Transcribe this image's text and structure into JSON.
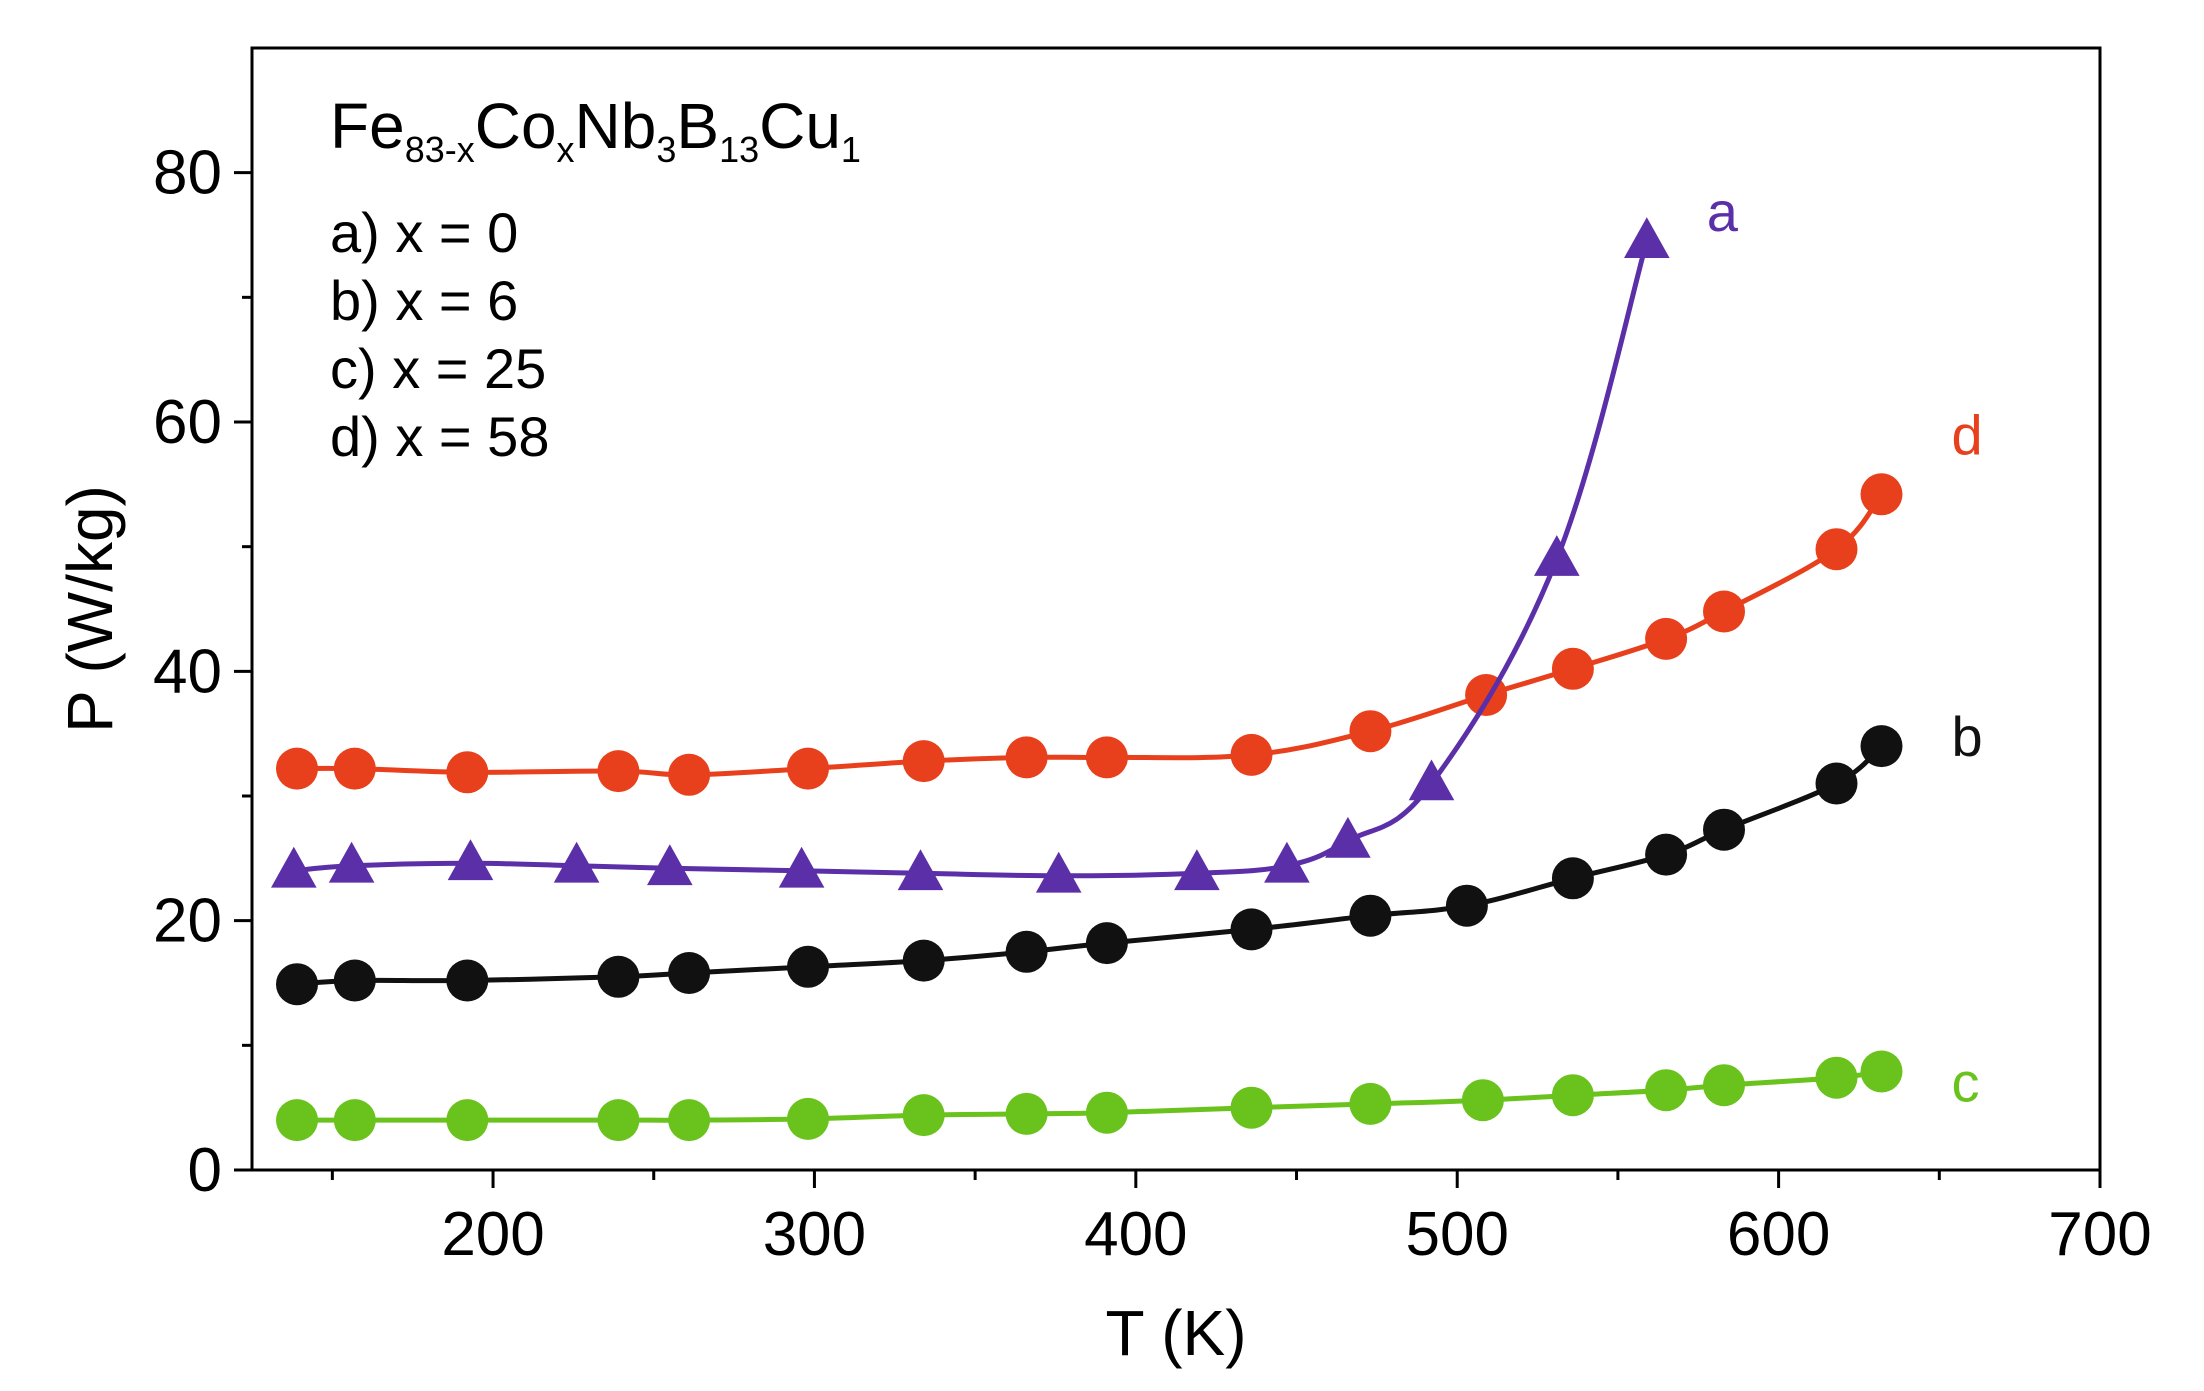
{
  "chart_data": {
    "type": "line",
    "xlabel": "T (K)",
    "ylabel": "P (W/kg)",
    "xlim": [
      125,
      700
    ],
    "ylim": [
      0,
      90
    ],
    "x_ticks": [
      200,
      300,
      400,
      500,
      600,
      700
    ],
    "y_ticks": [
      0,
      20,
      40,
      60,
      80
    ],
    "x_tick_labels": [
      "200",
      "300",
      "400",
      "500",
      "600",
      "700"
    ],
    "y_tick_labels": [
      "0",
      "20",
      "40",
      "60",
      "80"
    ],
    "formula": {
      "parts": [
        {
          "text": "Fe",
          "sub": false
        },
        {
          "text": "83-x",
          "sub": true
        },
        {
          "text": "Co",
          "sub": false
        },
        {
          "text": "x",
          "sub": true
        },
        {
          "text": "Nb",
          "sub": false
        },
        {
          "text": "3",
          "sub": true
        },
        {
          "text": "B",
          "sub": false
        },
        {
          "text": "13",
          "sub": true
        },
        {
          "text": "Cu",
          "sub": false
        },
        {
          "text": "1",
          "sub": true
        }
      ]
    },
    "legend_lines": [
      "a) x = 0",
      "b) x = 6",
      "c) x = 25",
      "d) x = 58"
    ],
    "series": [
      {
        "name": "a",
        "label": "a",
        "marker": "triangle",
        "color": "#5b2fa8",
        "x": [
          138,
          156,
          193,
          226,
          255,
          296,
          333,
          376,
          419,
          447,
          466,
          492,
          531,
          559
        ],
        "y": [
          24.0,
          24.4,
          24.6,
          24.4,
          24.2,
          24.0,
          23.8,
          23.6,
          23.8,
          24.4,
          26.4,
          31.0,
          49.0,
          74.5
        ]
      },
      {
        "name": "b",
        "label": "b",
        "marker": "circle",
        "color": "#111111",
        "x": [
          139,
          157,
          192,
          239,
          261,
          298,
          334,
          366,
          391,
          436,
          473,
          503,
          536,
          565,
          583,
          618,
          632
        ],
        "y": [
          14.9,
          15.2,
          15.2,
          15.5,
          15.8,
          16.3,
          16.8,
          17.5,
          18.2,
          19.3,
          20.4,
          21.2,
          23.4,
          25.3,
          27.3,
          31.0,
          34.0
        ]
      },
      {
        "name": "c",
        "label": "c",
        "marker": "circle",
        "color": "#6ac21c",
        "x": [
          139,
          157,
          192,
          239,
          261,
          298,
          334,
          366,
          391,
          436,
          473,
          508,
          536,
          565,
          583,
          618,
          632
        ],
        "y": [
          4.0,
          4.0,
          4.0,
          4.0,
          4.0,
          4.1,
          4.4,
          4.5,
          4.6,
          5.0,
          5.3,
          5.6,
          6.0,
          6.4,
          6.8,
          7.4,
          7.9
        ]
      },
      {
        "name": "d",
        "label": "d",
        "marker": "circle",
        "color": "#e8401c",
        "x": [
          139,
          157,
          192,
          239,
          261,
          298,
          334,
          366,
          391,
          436,
          473,
          509,
          536,
          565,
          583,
          618,
          632
        ],
        "y": [
          32.2,
          32.2,
          31.9,
          32.0,
          31.7,
          32.2,
          32.8,
          33.1,
          33.1,
          33.3,
          35.2,
          38.1,
          40.2,
          42.6,
          44.8,
          49.8,
          54.2
        ]
      }
    ]
  }
}
